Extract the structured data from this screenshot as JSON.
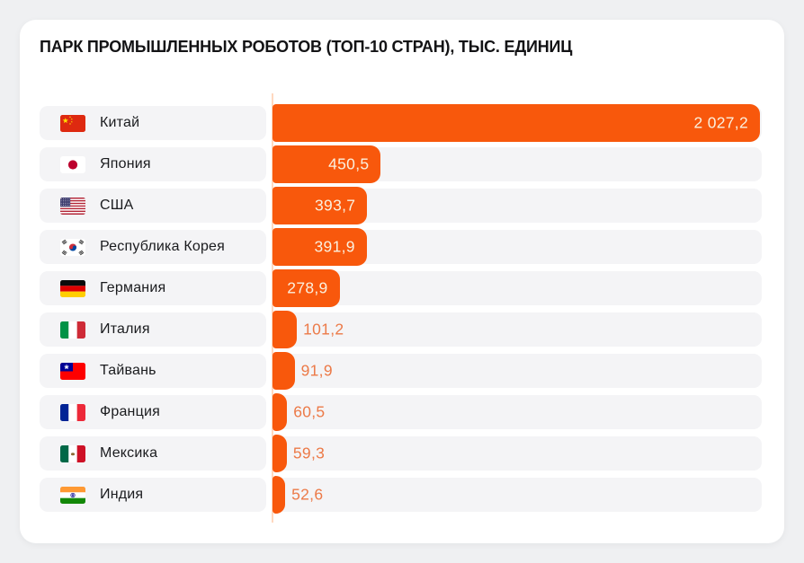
{
  "title": "ПАРК ПРОМЫШЛЕННЫХ РОБОТОВ (ТОП-10 СТРАН), ТЫС. ЕДИНИЦ",
  "colors": {
    "page_background": "#eff0f2",
    "card_background": "#ffffff",
    "row_track": "#f4f4f6",
    "bar": "#f8580c",
    "value_inside_text": "#faf0de",
    "value_outside_text": "#ec7a48",
    "axis_line": "#ffd8bf",
    "title_text": "#131315",
    "country_text": "#1a1b1e"
  },
  "chart_data": {
    "type": "bar",
    "orientation": "horizontal",
    "title": "ПАРК ПРОМЫШЛЕННЫХ РОБОТОВ (ТОП-10 СТРАН), ТЫС. ЕДИНИЦ",
    "unit_label": "тыс. единиц",
    "xlim": [
      0,
      2027.2
    ],
    "grid": false,
    "legend": false,
    "categories": [
      "Китай",
      "Япония",
      "США",
      "Республика Корея",
      "Германия",
      "Италия",
      "Тайвань",
      "Франция",
      "Мексика",
      "Индия"
    ],
    "values": [
      2027.2,
      450.5,
      393.7,
      391.9,
      278.9,
      101.2,
      91.9,
      60.5,
      59.3,
      52.6
    ],
    "rows": [
      {
        "country": "Китай",
        "flag": "cn",
        "flag_icon": "flag-china-icon",
        "value": 2027.2,
        "display": "2 027,2",
        "label_position": "inside"
      },
      {
        "country": "Япония",
        "flag": "jp",
        "flag_icon": "flag-japan-icon",
        "value": 450.5,
        "display": "450,5",
        "label_position": "inside"
      },
      {
        "country": "США",
        "flag": "us",
        "flag_icon": "flag-usa-icon",
        "value": 393.7,
        "display": "393,7",
        "label_position": "inside"
      },
      {
        "country": "Республика Корея",
        "flag": "kr",
        "flag_icon": "flag-south-korea-icon",
        "value": 391.9,
        "display": "391,9",
        "label_position": "inside"
      },
      {
        "country": "Германия",
        "flag": "de",
        "flag_icon": "flag-germany-icon",
        "value": 278.9,
        "display": "278,9",
        "label_position": "inside"
      },
      {
        "country": "Италия",
        "flag": "it",
        "flag_icon": "flag-italy-icon",
        "value": 101.2,
        "display": "101,2",
        "label_position": "outside"
      },
      {
        "country": "Тайвань",
        "flag": "tw",
        "flag_icon": "flag-taiwan-icon",
        "value": 91.9,
        "display": "91,9",
        "label_position": "outside"
      },
      {
        "country": "Франция",
        "flag": "fr",
        "flag_icon": "flag-france-icon",
        "value": 60.5,
        "display": "60,5",
        "label_position": "outside"
      },
      {
        "country": "Мексика",
        "flag": "mx",
        "flag_icon": "flag-mexico-icon",
        "value": 59.3,
        "display": "59,3",
        "label_position": "outside"
      },
      {
        "country": "Индия",
        "flag": "in",
        "flag_icon": "flag-india-icon",
        "value": 52.6,
        "display": "52,6",
        "label_position": "outside"
      }
    ]
  }
}
